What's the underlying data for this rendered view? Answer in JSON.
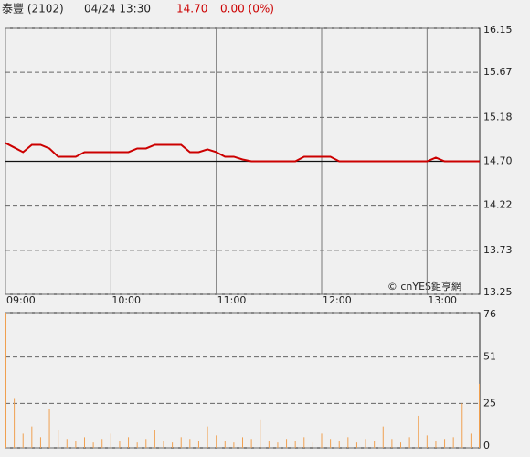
{
  "header": {
    "name": "泰豐 (2102)",
    "time": "04/24 13:30",
    "price": "14.70",
    "change": "0.00 (0%)"
  },
  "watermark": "© cnYES鉅亨網",
  "chart_data": [
    {
      "type": "line",
      "color": "#cc0000",
      "x": [
        "09:00",
        "09:05",
        "09:10",
        "09:15",
        "09:20",
        "09:25",
        "09:30",
        "09:35",
        "09:40",
        "09:45",
        "09:50",
        "09:55",
        "10:00",
        "10:05",
        "10:10",
        "10:15",
        "10:20",
        "10:25",
        "10:30",
        "10:35",
        "10:40",
        "10:45",
        "10:50",
        "10:55",
        "11:00",
        "11:05",
        "11:10",
        "11:15",
        "11:20",
        "11:25",
        "11:30",
        "11:35",
        "11:40",
        "11:45",
        "11:50",
        "11:55",
        "12:00",
        "12:05",
        "12:10",
        "12:15",
        "12:20",
        "12:25",
        "12:30",
        "12:35",
        "12:40",
        "12:45",
        "12:50",
        "12:55",
        "13:00",
        "13:05",
        "13:10",
        "13:15",
        "13:20",
        "13:25",
        "13:30"
      ],
      "values": [
        14.9,
        14.85,
        14.8,
        14.88,
        14.88,
        14.84,
        14.75,
        14.75,
        14.75,
        14.8,
        14.8,
        14.8,
        14.8,
        14.8,
        14.8,
        14.84,
        14.84,
        14.88,
        14.88,
        14.88,
        14.88,
        14.8,
        14.8,
        14.83,
        14.8,
        14.75,
        14.75,
        14.72,
        14.7,
        14.7,
        14.7,
        14.7,
        14.7,
        14.7,
        14.75,
        14.75,
        14.75,
        14.75,
        14.7,
        14.7,
        14.7,
        14.7,
        14.7,
        14.7,
        14.7,
        14.7,
        14.7,
        14.7,
        14.7,
        14.74,
        14.7,
        14.7,
        14.7,
        14.7,
        14.7
      ],
      "reference_line": 14.7,
      "xlim": [
        "09:00",
        "13:30"
      ],
      "xticks": [
        "09:00",
        "10:00",
        "11:00",
        "12:00",
        "13:00"
      ],
      "ylim": [
        13.25,
        16.15
      ],
      "yticks": [
        16.15,
        15.67,
        15.18,
        {
          "value": 14.7,
          "label": "14.70"
        },
        14.22,
        13.73,
        13.25
      ]
    },
    {
      "type": "bar",
      "color": "#f0a050",
      "x": [
        "09:00",
        "09:05",
        "09:10",
        "09:15",
        "09:20",
        "09:25",
        "09:30",
        "09:35",
        "09:40",
        "09:45",
        "09:50",
        "09:55",
        "10:00",
        "10:05",
        "10:10",
        "10:15",
        "10:20",
        "10:25",
        "10:30",
        "10:35",
        "10:40",
        "10:45",
        "10:50",
        "10:55",
        "11:00",
        "11:05",
        "11:10",
        "11:15",
        "11:20",
        "11:25",
        "11:30",
        "11:35",
        "11:40",
        "11:45",
        "11:50",
        "11:55",
        "12:00",
        "12:05",
        "12:10",
        "12:15",
        "12:20",
        "12:25",
        "12:30",
        "12:35",
        "12:40",
        "12:45",
        "12:50",
        "12:55",
        "13:00",
        "13:05",
        "13:10",
        "13:15",
        "13:20",
        "13:25",
        "13:30"
      ],
      "values": [
        76,
        28,
        8,
        12,
        6,
        22,
        10,
        5,
        4,
        6,
        3,
        5,
        8,
        4,
        6,
        3,
        5,
        10,
        4,
        3,
        6,
        5,
        4,
        12,
        7,
        4,
        3,
        6,
        5,
        16,
        4,
        3,
        5,
        4,
        6,
        3,
        8,
        5,
        4,
        6,
        3,
        5,
        4,
        12,
        5,
        3,
        6,
        18,
        7,
        4,
        5,
        6,
        25,
        8,
        36
      ],
      "xlim": [
        "09:00",
        "13:30"
      ],
      "ylim": [
        0,
        76
      ],
      "yticks": [
        76,
        51,
        25,
        0
      ]
    }
  ]
}
